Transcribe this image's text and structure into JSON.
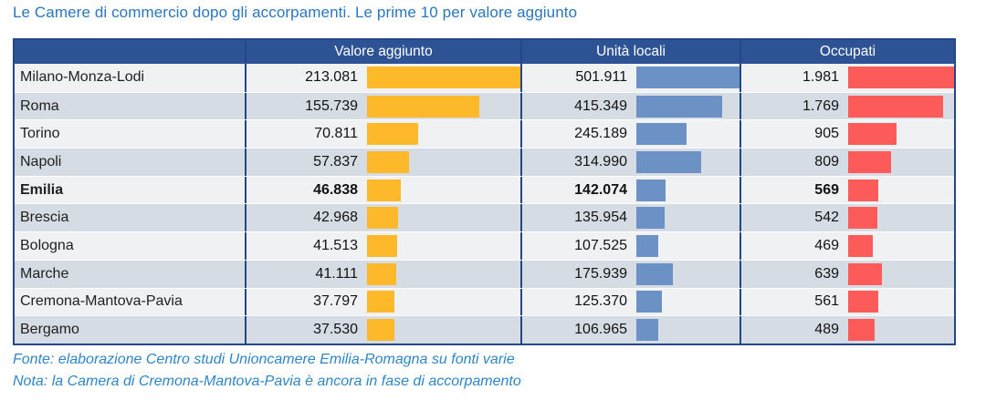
{
  "title": "Le Camere di commercio dopo gli accorpamenti. Le prime 10 per valore aggiunto",
  "table": {
    "columns": [
      {
        "label": "Valore aggiunto",
        "key": "valore_aggiunto",
        "bar_color": "#FEB92B"
      },
      {
        "label": "Unità locali",
        "key": "unita_locali",
        "bar_color": "#6B91C5"
      },
      {
        "label": "Occupati",
        "key": "occupati",
        "bar_color": "#FD5A5A"
      }
    ],
    "rows": [
      {
        "name": "Milano-Monza-Lodi",
        "valore_aggiunto": "213.081",
        "unita_locali": "501.911",
        "occupati": "1.981",
        "bold": false
      },
      {
        "name": "Roma",
        "valore_aggiunto": "155.739",
        "unita_locali": "415.349",
        "occupati": "1.769",
        "bold": false
      },
      {
        "name": "Torino",
        "valore_aggiunto": "70.811",
        "unita_locali": "245.189",
        "occupati": "905",
        "bold": false
      },
      {
        "name": "Napoli",
        "valore_aggiunto": "57.837",
        "unita_locali": "314.990",
        "occupati": "809",
        "bold": false
      },
      {
        "name": "Emilia",
        "valore_aggiunto": "46.838",
        "unita_locali": "142.074",
        "occupati": "569",
        "bold": true
      },
      {
        "name": "Brescia",
        "valore_aggiunto": "42.968",
        "unita_locali": "135.954",
        "occupati": "542",
        "bold": false
      },
      {
        "name": "Bologna",
        "valore_aggiunto": "41.513",
        "unita_locali": "107.525",
        "occupati": "469",
        "bold": false
      },
      {
        "name": "Marche",
        "valore_aggiunto": "41.111",
        "unita_locali": "175.939",
        "occupati": "639",
        "bold": false
      },
      {
        "name": "Cremona-Mantova-Pavia",
        "valore_aggiunto": "37.797",
        "unita_locali": "125.370",
        "occupati": "561",
        "bold": false
      },
      {
        "name": "Bergamo",
        "valore_aggiunto": "37.530",
        "unita_locali": "106.965",
        "occupati": "489",
        "bold": false
      }
    ]
  },
  "footer": {
    "fonte": "Fonte: elaborazione Centro studi Unioncamere Emilia-Romagna su fonti varie",
    "nota": "Nota: la Camera di Cremona-Mantova-Pavia è ancora in fase di accorpamento"
  },
  "colors": {
    "title_text": "#2B76C0",
    "footer_text": "#2E86C8",
    "header_bg": "#2E5395",
    "header_text": "#FFFFFF",
    "table_border": "#24478A",
    "row_light": "#F0F1F2",
    "row_alt": "#D6DCE4",
    "bar_orange": "#FEB92B",
    "bar_blue": "#6B91C5",
    "bar_red": "#FD5A5A"
  },
  "chart_data": {
    "type": "table",
    "title": "Le Camere di commercio dopo gli accorpamenti. Le prime 10 per valore aggiunto",
    "categories": [
      "Milano-Monza-Lodi",
      "Roma",
      "Torino",
      "Napoli",
      "Emilia",
      "Brescia",
      "Bologna",
      "Marche",
      "Cremona-Mantova-Pavia",
      "Bergamo"
    ],
    "series": [
      {
        "name": "Valore aggiunto",
        "bar_color": "#FEB92B",
        "values": [
          213081,
          155739,
          70811,
          57837,
          46838,
          42968,
          41513,
          41111,
          37797,
          37530
        ]
      },
      {
        "name": "Unità locali",
        "bar_color": "#6B91C5",
        "values": [
          501911,
          415349,
          245189,
          314990,
          142074,
          135954,
          107525,
          175939,
          125370,
          106965
        ]
      },
      {
        "name": "Occupati",
        "bar_color": "#FD5A5A",
        "values": [
          1981,
          1769,
          905,
          809,
          569,
          542,
          469,
          639,
          561,
          489
        ]
      }
    ],
    "highlighted_category": "Emilia",
    "bar_scaling": "in-cell data bars proportional to column maximum",
    "notes": [
      "Fonte: elaborazione Centro studi Unioncamere Emilia-Romagna su fonti varie",
      "Nota: la Camera di Cremona-Mantova-Pavia è ancora in fase di accorpamento"
    ]
  },
  "footer_style": {
    "italic": true
  }
}
